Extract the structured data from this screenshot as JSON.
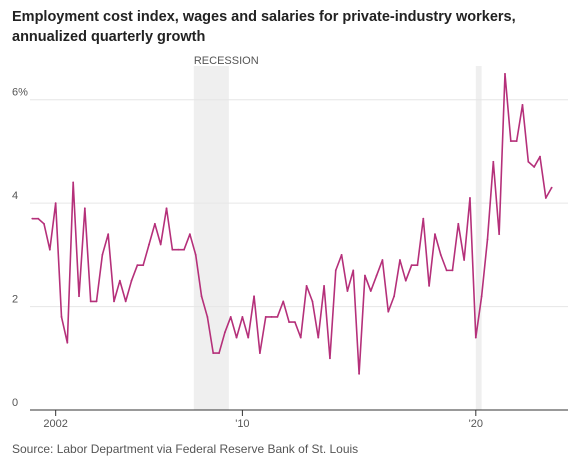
{
  "title": "Employment cost index, wages and salaries for private-industry workers, annualized quarterly growth",
  "source": "Source: Labor Department via Federal Reserve Bank of St. Louis",
  "colors": {
    "line": "#b5307a",
    "grid": "#e6e6e6",
    "recession": "#efefef",
    "axis": "#333333"
  },
  "chart_data": {
    "type": "line",
    "title": "Employment cost index, wages and salaries for private-industry workers, annualized quarterly growth",
    "xlabel": "",
    "ylabel": "",
    "xlim": [
      2000.9,
      2023.95
    ],
    "ylim": [
      0,
      7
    ],
    "y_ticks": [
      {
        "value": 0,
        "label": "0"
      },
      {
        "value": 2,
        "label": "2"
      },
      {
        "value": 4,
        "label": "4"
      },
      {
        "value": 6,
        "label": "6%"
      }
    ],
    "x_ticks": [
      {
        "value": 2002,
        "label": "2002"
      },
      {
        "value": 2010,
        "label": "'10"
      },
      {
        "value": 2020,
        "label": "'20"
      }
    ],
    "grid": "horizontal",
    "recession_label": "RECESSION",
    "recessions": [
      {
        "start": 2007.92,
        "end": 2009.42
      },
      {
        "start": 2020.0,
        "end": 2020.25
      }
    ],
    "series": [
      {
        "values": [
          [
            2001.0,
            3.7
          ],
          [
            2001.25,
            3.7
          ],
          [
            2001.5,
            3.6
          ],
          [
            2001.75,
            3.1
          ],
          [
            2002.0,
            4.0
          ],
          [
            2002.25,
            1.8
          ],
          [
            2002.5,
            1.3
          ],
          [
            2002.75,
            4.4
          ],
          [
            2003.0,
            2.2
          ],
          [
            2003.25,
            3.9
          ],
          [
            2003.5,
            2.1
          ],
          [
            2003.75,
            2.1
          ],
          [
            2004.0,
            3.0
          ],
          [
            2004.25,
            3.4
          ],
          [
            2004.5,
            2.1
          ],
          [
            2004.75,
            2.5
          ],
          [
            2005.0,
            2.1
          ],
          [
            2005.25,
            2.5
          ],
          [
            2005.5,
            2.8
          ],
          [
            2005.75,
            2.8
          ],
          [
            2006.0,
            3.2
          ],
          [
            2006.25,
            3.6
          ],
          [
            2006.5,
            3.2
          ],
          [
            2006.75,
            3.9
          ],
          [
            2007.0,
            3.1
          ],
          [
            2007.25,
            3.1
          ],
          [
            2007.5,
            3.1
          ],
          [
            2007.75,
            3.4
          ],
          [
            2008.0,
            3.0
          ],
          [
            2008.25,
            2.2
          ],
          [
            2008.5,
            1.8
          ],
          [
            2008.75,
            1.1
          ],
          [
            2009.0,
            1.1
          ],
          [
            2009.25,
            1.5
          ],
          [
            2009.5,
            1.8
          ],
          [
            2009.75,
            1.4
          ],
          [
            2010.0,
            1.8
          ],
          [
            2010.25,
            1.4
          ],
          [
            2010.5,
            2.2
          ],
          [
            2010.75,
            1.1
          ],
          [
            2011.0,
            1.8
          ],
          [
            2011.25,
            1.8
          ],
          [
            2011.5,
            1.8
          ],
          [
            2011.75,
            2.1
          ],
          [
            2012.0,
            1.7
          ],
          [
            2012.25,
            1.7
          ],
          [
            2012.5,
            1.4
          ],
          [
            2012.75,
            2.4
          ],
          [
            2013.0,
            2.1
          ],
          [
            2013.25,
            1.4
          ],
          [
            2013.5,
            2.4
          ],
          [
            2013.75,
            1.0
          ],
          [
            2014.0,
            2.7
          ],
          [
            2014.25,
            3.0
          ],
          [
            2014.5,
            2.3
          ],
          [
            2014.75,
            2.7
          ],
          [
            2015.0,
            0.7
          ],
          [
            2015.25,
            2.6
          ],
          [
            2015.5,
            2.3
          ],
          [
            2015.75,
            2.6
          ],
          [
            2016.0,
            2.9
          ],
          [
            2016.25,
            1.9
          ],
          [
            2016.5,
            2.2
          ],
          [
            2016.75,
            2.9
          ],
          [
            2017.0,
            2.5
          ],
          [
            2017.25,
            2.8
          ],
          [
            2017.5,
            2.8
          ],
          [
            2017.75,
            3.7
          ],
          [
            2018.0,
            2.4
          ],
          [
            2018.25,
            3.4
          ],
          [
            2018.5,
            3.0
          ],
          [
            2018.75,
            2.7
          ],
          [
            2019.0,
            2.7
          ],
          [
            2019.25,
            3.6
          ],
          [
            2019.5,
            2.9
          ],
          [
            2019.75,
            4.1
          ],
          [
            2020.0,
            1.4
          ],
          [
            2020.25,
            2.2
          ],
          [
            2020.5,
            3.3
          ],
          [
            2020.75,
            4.8
          ],
          [
            2021.0,
            3.4
          ],
          [
            2021.25,
            6.5
          ],
          [
            2021.5,
            5.2
          ],
          [
            2021.75,
            5.2
          ],
          [
            2022.0,
            5.9
          ],
          [
            2022.25,
            4.8
          ],
          [
            2022.5,
            4.7
          ],
          [
            2022.75,
            4.9
          ],
          [
            2023.0,
            4.1
          ],
          [
            2023.25,
            4.3
          ]
        ]
      }
    ]
  }
}
